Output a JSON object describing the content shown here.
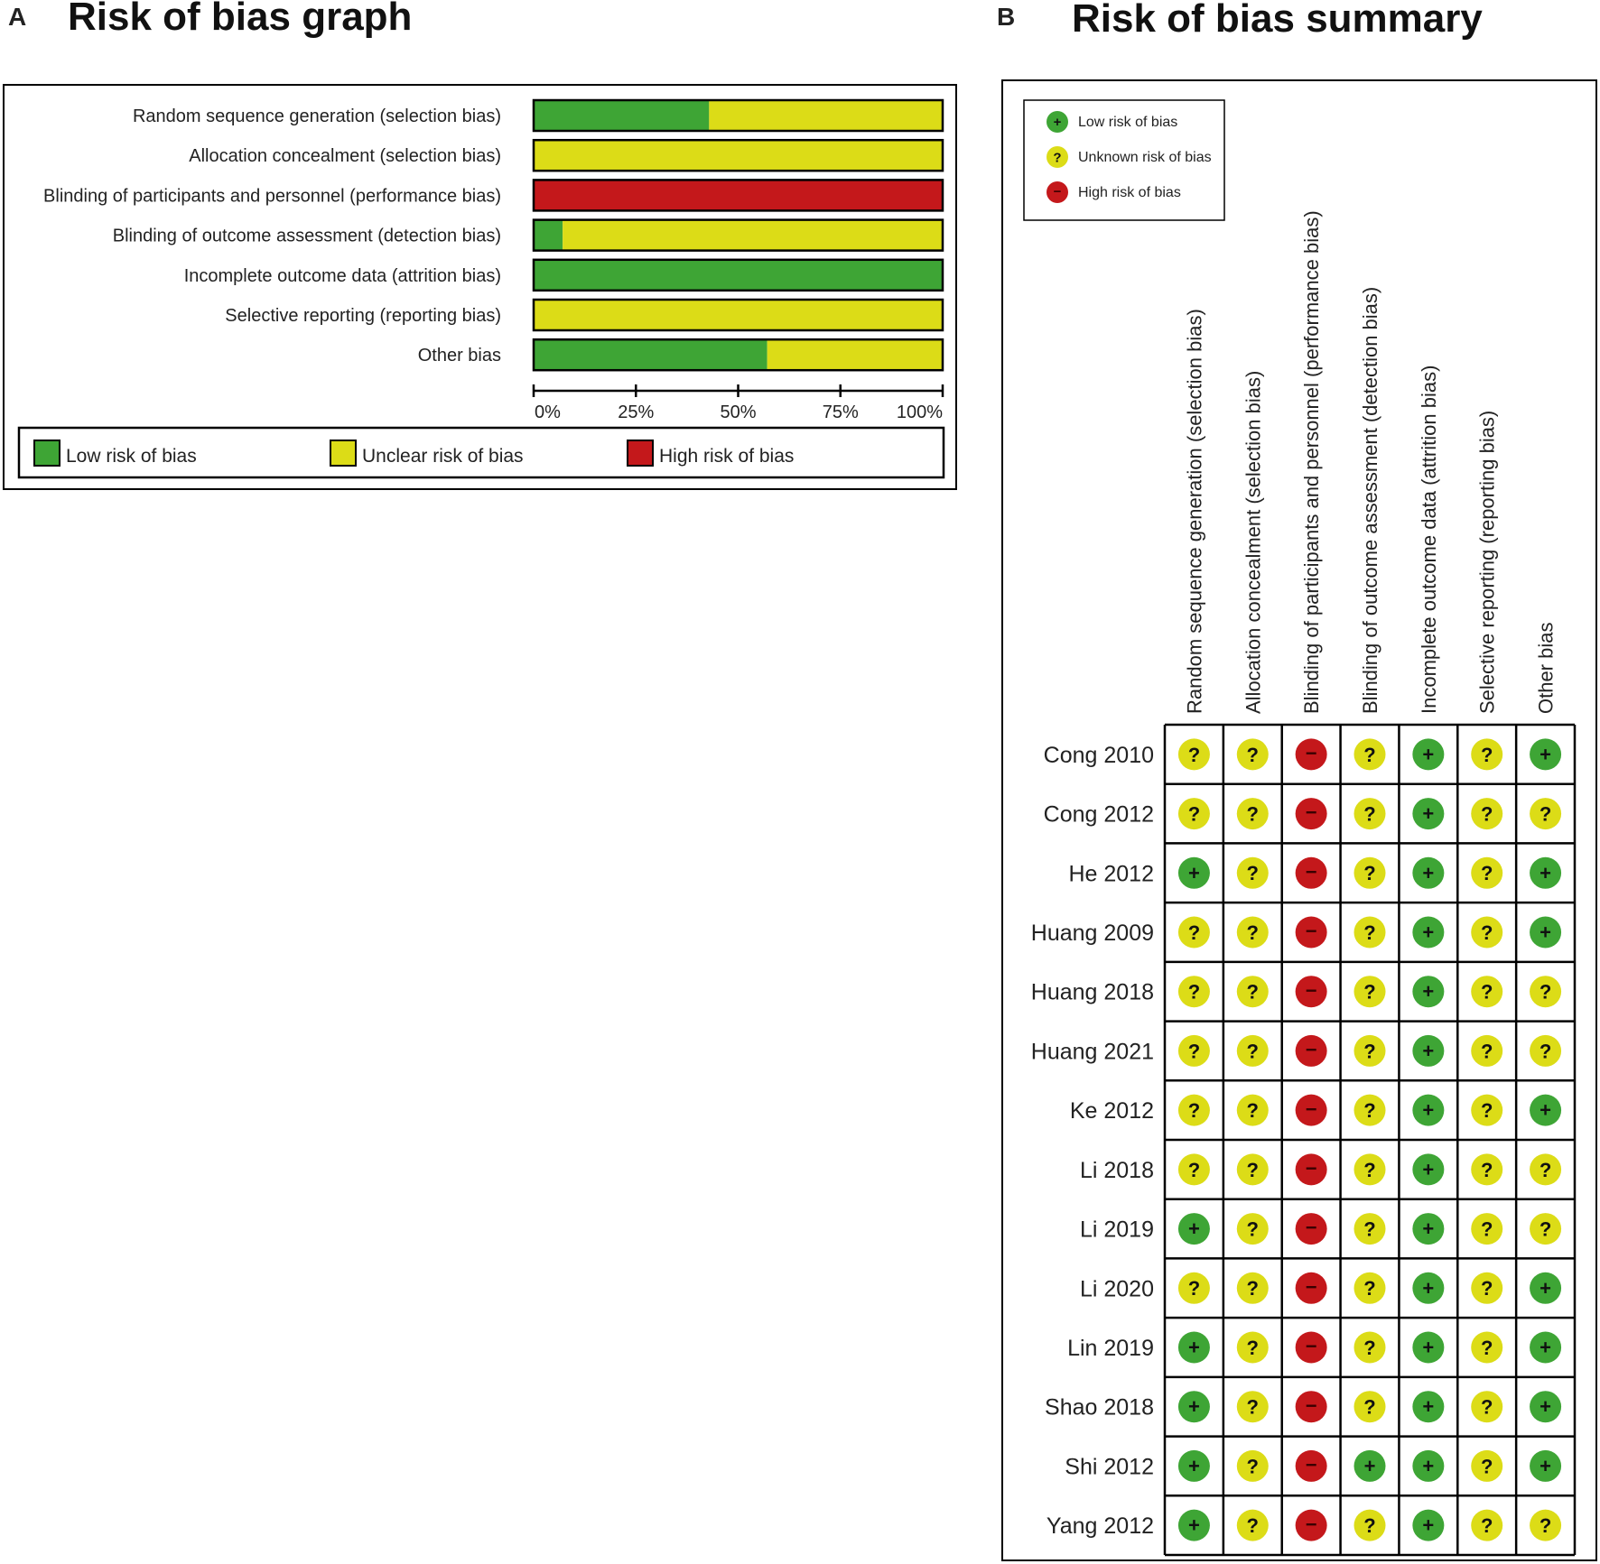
{
  "panel_a": {
    "letter": "A",
    "title": "Risk of bias graph"
  },
  "panel_b": {
    "letter": "B",
    "title": "Risk of bias summary"
  },
  "colors": {
    "low": "#3ea535",
    "unclear": "#dcdc17",
    "high": "#c4181b"
  },
  "chart_data": [
    {
      "type": "bar",
      "orientation": "horizontal-stacked-percent",
      "title": "Risk of bias graph",
      "categories": [
        "Random sequence generation (selection bias)",
        "Allocation concealment (selection bias)",
        "Blinding of participants and personnel (performance bias)",
        "Blinding of outcome assessment (detection bias)",
        "Incomplete outcome data (attrition bias)",
        "Selective reporting (reporting bias)",
        "Other bias"
      ],
      "series": [
        {
          "name": "Low risk of bias",
          "key": "low",
          "values": [
            42.9,
            0,
            0,
            7.1,
            100,
            0,
            57.1
          ]
        },
        {
          "name": "Unclear risk of bias",
          "key": "unclear",
          "values": [
            57.1,
            100,
            0,
            92.9,
            0,
            100,
            42.9
          ]
        },
        {
          "name": "High risk of bias",
          "key": "high",
          "values": [
            0,
            0,
            100,
            0,
            0,
            0,
            0
          ]
        }
      ],
      "xticks": [
        "0%",
        "25%",
        "50%",
        "75%",
        "100%"
      ],
      "xlim": [
        0,
        100
      ]
    },
    {
      "type": "table",
      "title": "Risk of bias summary",
      "legend": [
        {
          "key": "low",
          "symbol": "+",
          "label": "Low risk of bias"
        },
        {
          "key": "unclear",
          "symbol": "?",
          "label": "Unknown risk of bias"
        },
        {
          "key": "high",
          "symbol": "−",
          "label": "High risk of bias"
        }
      ],
      "columns": [
        "Random sequence generation (selection bias)",
        "Allocation concealment (selection bias)",
        "Blinding of participants and personnel (performance bias)",
        "Blinding of outcome assessment (detection bias)",
        "Incomplete outcome data (attrition bias)",
        "Selective reporting (reporting bias)",
        "Other bias"
      ],
      "rows": [
        {
          "study": "Cong 2010",
          "ratings": [
            "unclear",
            "unclear",
            "high",
            "unclear",
            "low",
            "unclear",
            "low"
          ]
        },
        {
          "study": "Cong 2012",
          "ratings": [
            "unclear",
            "unclear",
            "high",
            "unclear",
            "low",
            "unclear",
            "unclear"
          ]
        },
        {
          "study": "He 2012",
          "ratings": [
            "low",
            "unclear",
            "high",
            "unclear",
            "low",
            "unclear",
            "low"
          ]
        },
        {
          "study": "Huang 2009",
          "ratings": [
            "unclear",
            "unclear",
            "high",
            "unclear",
            "low",
            "unclear",
            "low"
          ]
        },
        {
          "study": "Huang 2018",
          "ratings": [
            "unclear",
            "unclear",
            "high",
            "unclear",
            "low",
            "unclear",
            "unclear"
          ]
        },
        {
          "study": "Huang 2021",
          "ratings": [
            "unclear",
            "unclear",
            "high",
            "unclear",
            "low",
            "unclear",
            "unclear"
          ]
        },
        {
          "study": "Ke 2012",
          "ratings": [
            "unclear",
            "unclear",
            "high",
            "unclear",
            "low",
            "unclear",
            "low"
          ]
        },
        {
          "study": "Li 2018",
          "ratings": [
            "unclear",
            "unclear",
            "high",
            "unclear",
            "low",
            "unclear",
            "unclear"
          ]
        },
        {
          "study": "Li 2019",
          "ratings": [
            "low",
            "unclear",
            "high",
            "unclear",
            "low",
            "unclear",
            "unclear"
          ]
        },
        {
          "study": "Li 2020",
          "ratings": [
            "unclear",
            "unclear",
            "high",
            "unclear",
            "low",
            "unclear",
            "low"
          ]
        },
        {
          "study": "Lin 2019",
          "ratings": [
            "low",
            "unclear",
            "high",
            "unclear",
            "low",
            "unclear",
            "low"
          ]
        },
        {
          "study": "Shao 2018",
          "ratings": [
            "low",
            "unclear",
            "high",
            "unclear",
            "low",
            "unclear",
            "low"
          ]
        },
        {
          "study": "Shi 2012",
          "ratings": [
            "low",
            "unclear",
            "high",
            "low",
            "low",
            "unclear",
            "low"
          ]
        },
        {
          "study": "Yang 2012",
          "ratings": [
            "low",
            "unclear",
            "high",
            "unclear",
            "low",
            "unclear",
            "unclear"
          ]
        }
      ]
    }
  ]
}
